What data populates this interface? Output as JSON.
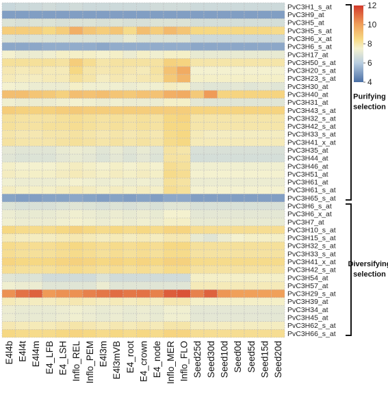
{
  "chart_data": {
    "type": "heatmap",
    "columns": [
      "E4l4b",
      "E4l4t",
      "E4l4m",
      "E4_LFB",
      "E4_LSH",
      "Inflo_REL",
      "Inflo_PEM",
      "E4l3m",
      "E4l3mVB",
      "E4_root",
      "E4_crown",
      "E4_node",
      "Inflo_MER",
      "Inflo_FLO",
      "Seed25d",
      "Seed30d",
      "Seed10d",
      "Seed0d",
      "Seed5d",
      "Seed15d",
      "Seed20d"
    ],
    "rows": [
      "PvC3H1_s_at",
      "PvC3H9_at",
      "PvC3H5_at",
      "PvC3H5_s_at",
      "PvC3H6_x_at",
      "PvC3H6_s_at",
      "PvC3H17_at",
      "PvC3H50_s_at",
      "PvC3H20_s_at",
      "PvC3H23_s_at",
      "PvC3H30_at",
      "PvC3H40_at",
      "PvC3H31_at",
      "PvC3H43_s_at",
      "PvC3H32_s_at",
      "PvC3H42_s_at",
      "PvC3H33_s_at",
      "PvC3H41_x_at",
      "PvC3H35_at",
      "PvC3H44_at",
      "PvC3H46_at",
      "PvC3H51_at",
      "PvC3H61_at",
      "PvC3H61_s_at",
      "PvC3H65_s_at",
      "PvC3H6_s_at",
      "PvC3H6_x_at",
      "PvC3H7_at",
      "PvC3H10_s_at",
      "PvC3H15_s_at",
      "PvC3H32_s_at",
      "PvC3H33_s_at",
      "PvC3H41_x_at",
      "PvC3H42_s_at",
      "PvC3H54_at",
      "PvC3H57_at",
      "PvC3H29_s_at",
      "PvC3H39_at",
      "PvC3H34_at",
      "PvC3H45_at",
      "PvC3H62_s_at",
      "PvC3H66_s_at"
    ],
    "values": [
      [
        6.4,
        6.5,
        6.5,
        6.6,
        6.5,
        6.6,
        6.5,
        6.5,
        6.5,
        6.5,
        6.5,
        6.6,
        6.6,
        6.6,
        6.5,
        6.5,
        6.5,
        6.5,
        6.5,
        6.5,
        6.5
      ],
      [
        5.0,
        5.0,
        5.0,
        5.0,
        5.0,
        5.0,
        5.0,
        5.0,
        5.0,
        5.0,
        5.0,
        5.0,
        5.0,
        5.0,
        5.0,
        5.0,
        5.0,
        5.0,
        5.0,
        5.0,
        5.0
      ],
      [
        6.9,
        6.8,
        6.9,
        6.9,
        6.8,
        6.9,
        6.9,
        6.8,
        6.9,
        6.8,
        6.8,
        6.9,
        6.9,
        6.9,
        6.7,
        6.7,
        6.7,
        6.7,
        6.7,
        6.7,
        6.7
      ],
      [
        8.8,
        8.8,
        8.8,
        8.5,
        8.8,
        9.6,
        9.0,
        8.8,
        9.0,
        8.4,
        9.2,
        8.8,
        9.3,
        9.0,
        8.5,
        8.5,
        8.5,
        8.5,
        8.5,
        8.5,
        8.4
      ],
      [
        6.9,
        6.8,
        6.9,
        6.9,
        6.9,
        6.9,
        6.9,
        6.9,
        6.9,
        7.2,
        6.9,
        6.9,
        6.9,
        6.9,
        6.5,
        6.5,
        6.5,
        6.5,
        6.5,
        6.5,
        6.5
      ],
      [
        5.2,
        5.2,
        5.2,
        5.3,
        5.3,
        5.3,
        5.3,
        5.2,
        5.3,
        5.3,
        5.3,
        5.3,
        5.3,
        5.3,
        5.2,
        5.2,
        5.2,
        5.2,
        5.2,
        5.2,
        5.2
      ],
      [
        7.5,
        7.3,
        7.3,
        7.4,
        7.6,
        7.6,
        7.6,
        7.5,
        7.6,
        7.3,
        7.6,
        7.4,
        7.6,
        7.6,
        7.2,
        7.2,
        7.2,
        7.2,
        7.2,
        7.2,
        7.2
      ],
      [
        8.2,
        8.2,
        8.2,
        8.2,
        8.1,
        8.8,
        8.3,
        8.0,
        8.1,
        8.1,
        8.1,
        8.1,
        8.7,
        8.6,
        8.0,
        8.0,
        8.0,
        8.0,
        8.0,
        8.0,
        8.0
      ],
      [
        7.9,
        7.8,
        7.9,
        7.8,
        7.8,
        8.5,
        8.0,
        7.9,
        8.0,
        7.9,
        7.8,
        8.1,
        9.1,
        9.7,
        7.5,
        7.5,
        7.5,
        7.5,
        7.5,
        7.5,
        7.5
      ],
      [
        7.8,
        7.7,
        7.7,
        7.8,
        7.8,
        8.2,
        8.0,
        7.7,
        7.9,
        7.8,
        7.9,
        8.0,
        8.9,
        9.4,
        7.6,
        7.6,
        7.6,
        7.6,
        7.6,
        7.6,
        7.6
      ],
      [
        7.5,
        7.4,
        7.3,
        7.3,
        7.3,
        7.6,
        7.4,
        7.4,
        7.4,
        7.3,
        7.4,
        7.4,
        7.7,
        7.6,
        7.1,
        7.0,
        7.0,
        7.1,
        7.0,
        7.1,
        7.0
      ],
      [
        9.2,
        9.2,
        9.0,
        8.9,
        8.7,
        9.2,
        9.1,
        9.2,
        9.0,
        8.9,
        9.1,
        9.1,
        9.6,
        9.7,
        8.9,
        10.1,
        8.6,
        8.6,
        8.6,
        8.6,
        8.6
      ],
      [
        7.4,
        7.3,
        7.3,
        7.3,
        7.4,
        7.5,
        7.4,
        7.3,
        7.4,
        7.3,
        7.3,
        7.3,
        7.6,
        7.6,
        7.1,
        7.0,
        7.0,
        7.0,
        7.0,
        7.0,
        7.0
      ],
      [
        8.8,
        8.7,
        8.7,
        8.7,
        8.8,
        8.9,
        8.8,
        8.8,
        8.8,
        8.8,
        8.8,
        8.8,
        8.8,
        8.8,
        8.6,
        8.6,
        8.6,
        8.6,
        8.6,
        8.6,
        8.6
      ],
      [
        8.2,
        8.1,
        8.1,
        8.1,
        8.2,
        8.3,
        8.2,
        8.1,
        8.2,
        8.1,
        8.2,
        8.1,
        8.5,
        8.6,
        8.0,
        8.0,
        8.0,
        8.0,
        8.0,
        8.0,
        8.0
      ],
      [
        8.2,
        8.1,
        8.1,
        8.2,
        8.2,
        8.3,
        8.2,
        8.1,
        8.2,
        8.1,
        8.2,
        8.1,
        8.5,
        8.5,
        8.0,
        8.0,
        8.0,
        8.0,
        8.0,
        8.0,
        8.0
      ],
      [
        8.0,
        7.9,
        7.9,
        8.0,
        8.0,
        8.1,
        8.0,
        7.9,
        8.0,
        7.9,
        8.0,
        7.9,
        8.4,
        8.5,
        7.8,
        7.7,
        7.7,
        7.7,
        7.7,
        7.7,
        7.7
      ],
      [
        8.1,
        8.0,
        8.0,
        8.0,
        8.1,
        8.2,
        8.1,
        8.0,
        8.1,
        8.0,
        8.1,
        8.0,
        8.4,
        8.5,
        7.8,
        7.8,
        7.8,
        7.8,
        7.8,
        7.8,
        7.8
      ],
      [
        7.1,
        7.0,
        7.0,
        7.0,
        7.2,
        7.3,
        7.2,
        7.0,
        7.2,
        7.0,
        7.2,
        7.0,
        8.1,
        8.0,
        6.8,
        6.8,
        6.8,
        6.8,
        6.8,
        6.8,
        6.8
      ],
      [
        7.0,
        6.9,
        6.9,
        6.9,
        7.1,
        7.2,
        7.1,
        6.9,
        7.1,
        6.9,
        7.1,
        6.9,
        8.1,
        8.1,
        6.7,
        6.7,
        6.7,
        6.7,
        6.7,
        6.7,
        6.7
      ],
      [
        7.6,
        7.5,
        7.5,
        7.5,
        7.6,
        7.7,
        7.6,
        7.5,
        7.6,
        7.5,
        7.6,
        7.5,
        8.3,
        8.2,
        7.4,
        7.4,
        7.4,
        7.4,
        7.4,
        7.4,
        7.4
      ],
      [
        7.7,
        7.6,
        7.6,
        7.6,
        7.7,
        7.8,
        7.7,
        7.6,
        7.7,
        7.6,
        7.7,
        7.6,
        8.4,
        8.3,
        7.5,
        7.5,
        7.5,
        7.5,
        7.5,
        7.5,
        7.5
      ],
      [
        7.4,
        7.3,
        7.3,
        7.3,
        7.4,
        7.5,
        7.4,
        7.3,
        7.4,
        7.3,
        7.4,
        7.3,
        8.2,
        8.1,
        7.3,
        7.3,
        7.3,
        7.3,
        7.3,
        7.3,
        7.3
      ],
      [
        7.7,
        7.6,
        7.6,
        7.6,
        7.7,
        7.8,
        7.7,
        7.6,
        7.7,
        7.6,
        7.7,
        7.6,
        8.3,
        8.2,
        7.5,
        7.5,
        7.5,
        7.5,
        7.5,
        7.5,
        7.5
      ],
      [
        5.1,
        5.0,
        5.0,
        5.1,
        5.1,
        5.2,
        5.1,
        5.0,
        5.1,
        5.0,
        5.1,
        5.0,
        5.2,
        5.2,
        5.0,
        5.0,
        5.0,
        5.0,
        5.0,
        5.0,
        5.0
      ],
      [
        6.9,
        6.8,
        6.8,
        6.8,
        6.9,
        7.0,
        6.9,
        6.8,
        6.9,
        6.8,
        6.9,
        6.8,
        7.0,
        7.0,
        6.8,
        6.8,
        6.8,
        6.8,
        6.8,
        6.8,
        6.8
      ],
      [
        7.3,
        7.2,
        7.2,
        7.2,
        7.3,
        7.4,
        7.3,
        7.2,
        7.3,
        7.2,
        7.3,
        7.2,
        7.5,
        7.5,
        7.1,
        7.1,
        7.1,
        7.1,
        7.1,
        7.1,
        7.1
      ],
      [
        7.4,
        7.3,
        7.3,
        7.3,
        7.4,
        7.5,
        7.4,
        7.3,
        7.4,
        7.3,
        7.4,
        7.3,
        7.6,
        7.6,
        7.2,
        7.2,
        7.2,
        7.2,
        7.2,
        7.2,
        7.2
      ],
      [
        8.5,
        8.4,
        8.4,
        8.4,
        8.5,
        8.7,
        8.5,
        8.4,
        8.5,
        8.4,
        8.5,
        8.4,
        8.6,
        8.6,
        8.3,
        8.3,
        8.3,
        8.3,
        8.3,
        8.3,
        8.3
      ],
      [
        7.8,
        7.7,
        7.7,
        7.7,
        7.8,
        7.9,
        7.8,
        7.7,
        7.8,
        7.7,
        7.8,
        7.7,
        7.9,
        7.9,
        7.2,
        7.0,
        7.3,
        7.5,
        7.6,
        7.6,
        7.6
      ],
      [
        8.4,
        8.3,
        8.3,
        8.3,
        8.4,
        8.5,
        8.4,
        8.3,
        8.4,
        8.3,
        8.4,
        8.3,
        8.5,
        8.5,
        8.2,
        8.2,
        8.2,
        8.2,
        8.2,
        8.2,
        8.2
      ],
      [
        8.3,
        8.2,
        8.2,
        8.2,
        8.3,
        8.4,
        8.3,
        8.2,
        8.3,
        8.2,
        8.3,
        8.2,
        8.4,
        8.4,
        8.1,
        8.1,
        8.1,
        8.1,
        8.1,
        8.1,
        8.1
      ],
      [
        8.6,
        8.5,
        8.5,
        8.5,
        8.6,
        8.7,
        8.6,
        8.5,
        8.6,
        8.5,
        8.6,
        8.5,
        8.7,
        8.7,
        8.4,
        8.4,
        8.4,
        8.4,
        8.4,
        8.4,
        8.4
      ],
      [
        8.3,
        8.2,
        8.2,
        8.2,
        8.3,
        8.4,
        8.3,
        8.2,
        8.3,
        8.2,
        8.3,
        8.2,
        8.4,
        8.4,
        8.1,
        8.1,
        8.1,
        8.1,
        8.1,
        8.1,
        8.1
      ],
      [
        7.0,
        6.9,
        6.9,
        6.6,
        6.6,
        6.6,
        6.6,
        6.9,
        6.6,
        6.6,
        6.6,
        6.6,
        6.6,
        6.6,
        7.6,
        7.6,
        7.6,
        7.6,
        7.6,
        7.6,
        7.6
      ],
      [
        7.4,
        7.3,
        7.3,
        7.0,
        7.0,
        7.0,
        7.0,
        7.3,
        7.0,
        7.0,
        7.0,
        7.0,
        7.0,
        7.0,
        7.8,
        7.8,
        7.8,
        7.8,
        7.8,
        7.8,
        7.8
      ],
      [
        10.3,
        10.9,
        11.2,
        10.1,
        10.3,
        10.3,
        10.6,
        10.8,
        11.0,
        10.8,
        10.9,
        10.6,
        11.3,
        11.5,
        10.6,
        11.2,
        10.2,
        10.0,
        10.0,
        10.0,
        10.0
      ],
      [
        7.8,
        7.7,
        7.7,
        7.7,
        7.8,
        7.9,
        7.8,
        7.7,
        7.8,
        7.7,
        7.8,
        7.7,
        7.9,
        7.9,
        7.6,
        7.6,
        7.6,
        7.6,
        7.6,
        7.6,
        7.6
      ],
      [
        7.3,
        7.2,
        7.2,
        7.2,
        7.3,
        7.4,
        7.3,
        7.2,
        7.3,
        7.2,
        7.3,
        7.2,
        7.4,
        7.4,
        7.1,
        7.1,
        7.1,
        7.1,
        7.1,
        7.1,
        7.1
      ],
      [
        7.3,
        7.2,
        7.2,
        7.2,
        7.3,
        7.4,
        7.3,
        7.2,
        7.3,
        7.2,
        7.3,
        7.2,
        7.4,
        7.4,
        7.1,
        7.1,
        7.1,
        7.1,
        7.1,
        7.1,
        7.1
      ],
      [
        7.9,
        7.8,
        7.8,
        7.8,
        7.9,
        8.0,
        7.9,
        7.8,
        7.9,
        7.8,
        7.9,
        7.8,
        8.0,
        8.0,
        7.7,
        7.7,
        7.7,
        7.7,
        7.7,
        7.7,
        7.7
      ],
      [
        8.5,
        8.4,
        8.4,
        8.4,
        8.5,
        8.6,
        8.5,
        8.4,
        8.5,
        8.4,
        8.5,
        8.4,
        8.6,
        8.6,
        8.3,
        8.3,
        8.3,
        8.3,
        8.3,
        8.3,
        8.3
      ]
    ],
    "color_scale": {
      "min": 4,
      "max": 12,
      "ticks": [
        4,
        6,
        8,
        10,
        12
      ],
      "stops": [
        {
          "value": 4,
          "color": "#4a6fa5"
        },
        {
          "value": 6,
          "color": "#b8cde0"
        },
        {
          "value": 7.5,
          "color": "#f4f1cf"
        },
        {
          "value": 8.5,
          "color": "#f6d883"
        },
        {
          "value": 10,
          "color": "#f0a05a"
        },
        {
          "value": 12,
          "color": "#d2392b"
        }
      ]
    },
    "groups": [
      {
        "label_lines": [
          "Purifying",
          "selection"
        ],
        "start_row": 0,
        "end_row": 24
      },
      {
        "label_lines": [
          "Diversifying",
          "selection"
        ],
        "start_row": 25,
        "end_row": 41
      }
    ]
  }
}
